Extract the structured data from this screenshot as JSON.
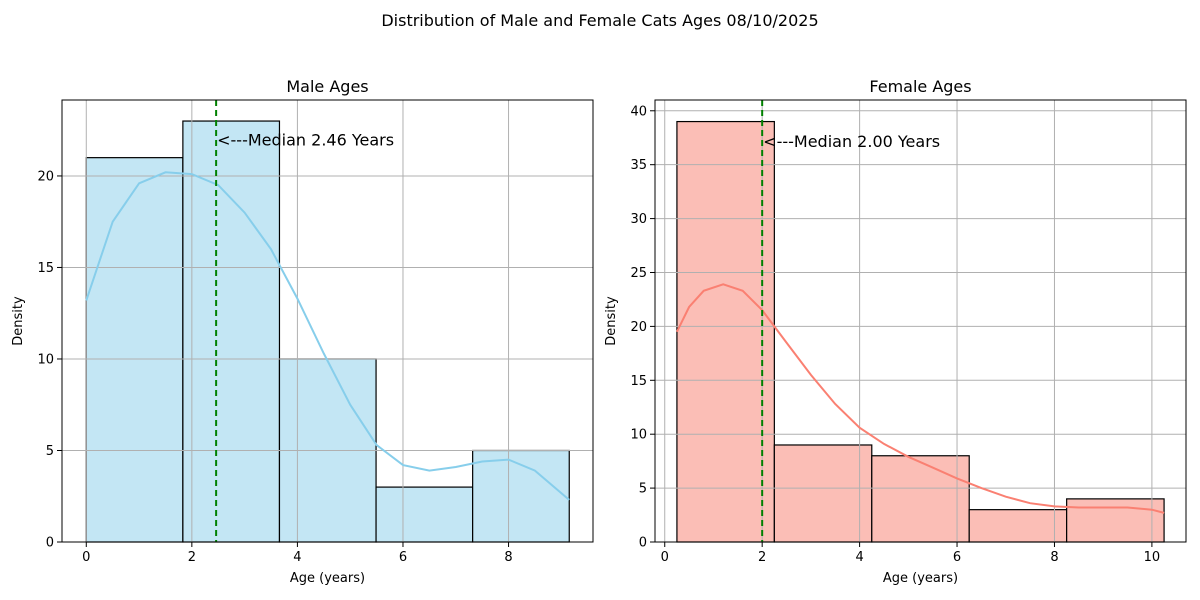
{
  "suptitle": "Distribution of Male and Female Cats Ages 08/10/2025",
  "chart_data": [
    {
      "type": "bar",
      "title": "Male Ages",
      "xlabel": "Age (years)",
      "ylabel": "Density",
      "xlim": [
        -0.46,
        9.6
      ],
      "ylim": [
        0,
        24.15
      ],
      "xticks": [
        0,
        2,
        4,
        6,
        8
      ],
      "yticks": [
        0,
        5,
        10,
        15,
        20
      ],
      "grid": true,
      "bar_color": "#87ceeb",
      "bar_fill": "#c3e6f4",
      "line_color": "#87ceeb",
      "bins": [
        {
          "x0": 0.0,
          "x1": 1.83,
          "value": 21
        },
        {
          "x0": 1.83,
          "x1": 3.66,
          "value": 23
        },
        {
          "x0": 3.66,
          "x1": 5.49,
          "value": 10
        },
        {
          "x0": 5.49,
          "x1": 7.32,
          "value": 3
        },
        {
          "x0": 7.32,
          "x1": 9.15,
          "value": 5
        }
      ],
      "kde": [
        [
          0.0,
          13.2
        ],
        [
          0.5,
          17.5
        ],
        [
          1.0,
          19.6
        ],
        [
          1.5,
          20.2
        ],
        [
          2.0,
          20.1
        ],
        [
          2.5,
          19.5
        ],
        [
          3.0,
          18.0
        ],
        [
          3.5,
          16.0
        ],
        [
          4.0,
          13.3
        ],
        [
          4.5,
          10.3
        ],
        [
          5.0,
          7.5
        ],
        [
          5.5,
          5.3
        ],
        [
          6.0,
          4.2
        ],
        [
          6.5,
          3.9
        ],
        [
          7.0,
          4.1
        ],
        [
          7.5,
          4.4
        ],
        [
          8.0,
          4.5
        ],
        [
          8.5,
          3.9
        ],
        [
          9.15,
          2.3
        ]
      ],
      "median": 2.46,
      "median_color": "#008000",
      "annotation": "<---Median 2.46 Years",
      "annotation_y": 22.0
    },
    {
      "type": "bar",
      "title": "Female Ages",
      "xlabel": "Age (years)",
      "ylabel": "Density",
      "xlim": [
        -0.2,
        10.7
      ],
      "ylim": [
        0,
        41.0
      ],
      "xticks": [
        0,
        2,
        4,
        6,
        8,
        10
      ],
      "yticks": [
        0,
        5,
        10,
        15,
        20,
        25,
        30,
        35,
        40
      ],
      "grid": true,
      "bar_color": "#fa8072",
      "bar_fill": "#fbbeb6",
      "line_color": "#fa8072",
      "bins": [
        {
          "x0": 0.25,
          "x1": 2.25,
          "value": 39
        },
        {
          "x0": 2.25,
          "x1": 4.25,
          "value": 9
        },
        {
          "x0": 4.25,
          "x1": 6.25,
          "value": 8
        },
        {
          "x0": 6.25,
          "x1": 8.25,
          "value": 3
        },
        {
          "x0": 8.25,
          "x1": 10.25,
          "value": 4
        }
      ],
      "kde": [
        [
          0.25,
          19.5
        ],
        [
          0.5,
          21.8
        ],
        [
          0.8,
          23.3
        ],
        [
          1.2,
          23.9
        ],
        [
          1.6,
          23.3
        ],
        [
          2.0,
          21.5
        ],
        [
          2.5,
          18.5
        ],
        [
          3.0,
          15.5
        ],
        [
          3.5,
          12.8
        ],
        [
          4.0,
          10.6
        ],
        [
          4.5,
          9.1
        ],
        [
          5.0,
          7.9
        ],
        [
          5.5,
          6.9
        ],
        [
          6.0,
          5.9
        ],
        [
          6.5,
          5.0
        ],
        [
          7.0,
          4.2
        ],
        [
          7.5,
          3.6
        ],
        [
          8.0,
          3.3
        ],
        [
          8.5,
          3.2
        ],
        [
          9.0,
          3.2
        ],
        [
          9.5,
          3.2
        ],
        [
          10.0,
          3.0
        ],
        [
          10.25,
          2.7
        ]
      ],
      "median": 2.0,
      "median_color": "#008000",
      "annotation": "<---Median 2.00 Years",
      "annotation_y": 37.2
    }
  ]
}
